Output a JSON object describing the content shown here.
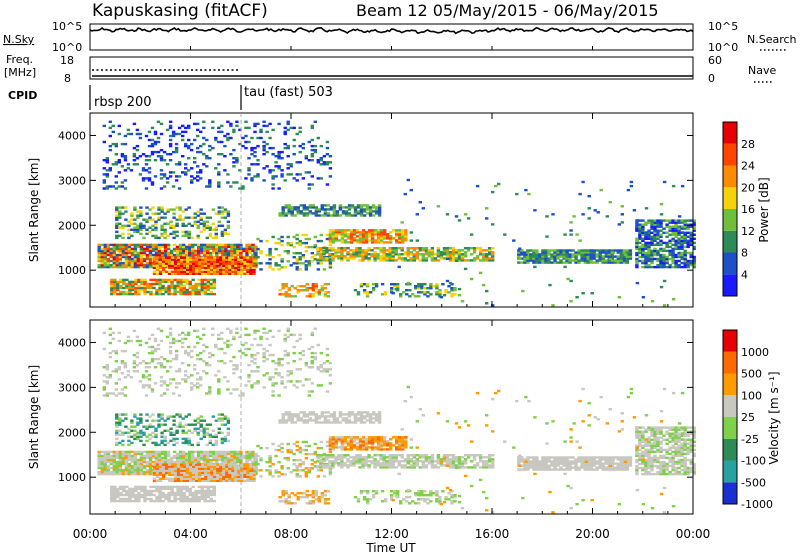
{
  "header": {
    "station": "Kapuskasing (fitACF)",
    "beam_info": "Beam 12 05/May/2015 - 06/May/2015"
  },
  "noise_panel": {
    "left_label": "N.Sky",
    "left_ticks": [
      "10^5",
      "10^0"
    ],
    "right_label": "N.Search",
    "right_ticks": [
      "10^5",
      "10^0"
    ]
  },
  "freq_panel": {
    "left_label_top": "Freq.",
    "left_label_unit": "[MHz]",
    "left_ticks": [
      "18",
      "8"
    ],
    "right_label": "Nave",
    "right_ticks": [
      "60",
      "0"
    ]
  },
  "cpid_panel": {
    "label": "CPID",
    "modes": [
      "rbsp 200",
      "tau (fast) 503"
    ]
  },
  "x_axis": {
    "ticks": [
      "00:00",
      "04:00",
      "08:00",
      "12:00",
      "16:00",
      "20:00",
      "00:00"
    ],
    "title": "Time UT"
  },
  "power_panel": {
    "ylabel": "Slant Range [km]",
    "yticks": [
      "1000",
      "2000",
      "3000",
      "4000"
    ],
    "colorbar_label": "Power [dB]",
    "colorbar_ticks": [
      "4",
      "8",
      "12",
      "16",
      "20",
      "24",
      "28"
    ],
    "colors": [
      "#1a1aff",
      "#1e50c8",
      "#2e8b57",
      "#6fbf3c",
      "#f5d20a",
      "#ff8c00",
      "#ff4500",
      "#e60000"
    ]
  },
  "velocity_panel": {
    "ylabel": "Slant Range [km]",
    "yticks": [
      "1000",
      "2000",
      "3000",
      "4000"
    ],
    "colorbar_label": "Velocity [m s⁻¹]",
    "colorbar_ticks": [
      "1000",
      "500",
      "100",
      "25",
      "-25",
      "-100",
      "-500",
      "-1000"
    ],
    "colors": [
      "#1a2fd0",
      "#2aa0a0",
      "#2e8b57",
      "#7fd04a",
      "#c8c8c0",
      "#ff9a00",
      "#ff6a00",
      "#e60000"
    ]
  },
  "chart_data": {
    "type": "heatmap",
    "x_range_hours": [
      0,
      24
    ],
    "y_range_km": [
      180,
      4500
    ],
    "power_db_range": [
      0,
      30
    ],
    "velocity_range": [
      -1000,
      1000
    ],
    "mode_change_hour": 6
  }
}
